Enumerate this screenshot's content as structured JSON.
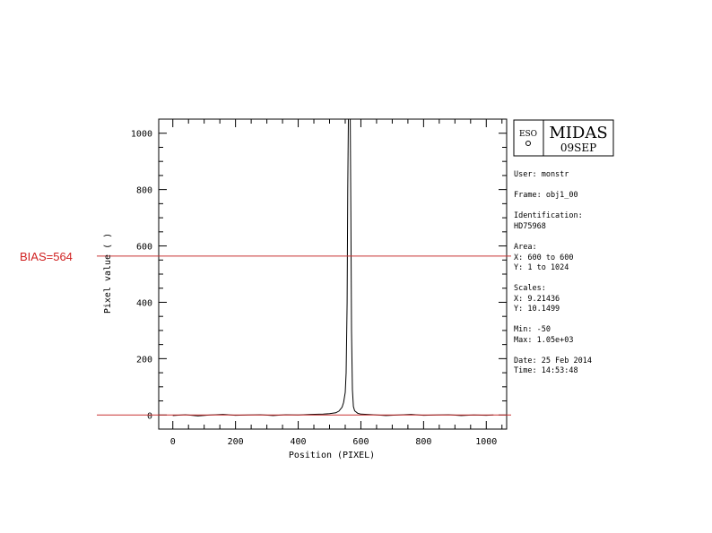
{
  "chart_data": {
    "type": "line",
    "xlabel": "Position (PIXEL)",
    "ylabel": "Pixel value ( )",
    "xlim": [
      -45,
      1065
    ],
    "ylim": [
      -50,
      1050
    ],
    "xticks": [
      0,
      200,
      400,
      600,
      800,
      1000
    ],
    "xtick_labels": [
      "0",
      "200",
      "400",
      "600",
      "800",
      "1000"
    ],
    "yticks": [
      0,
      200,
      400,
      600,
      800,
      1000
    ],
    "ytick_labels": [
      "0",
      "200",
      "400",
      "600",
      "800",
      "1000"
    ],
    "series": [
      {
        "color": "#000000",
        "x": [
          0,
          40,
          80,
          120,
          160,
          200,
          240,
          280,
          320,
          360,
          400,
          440,
          480,
          500,
          520,
          530,
          540,
          545,
          550,
          553,
          556,
          558,
          560,
          562,
          564,
          566,
          568,
          570,
          573,
          576,
          580,
          590,
          600,
          640,
          680,
          720,
          760,
          800,
          840,
          880,
          920,
          960,
          1000,
          1023
        ],
        "y": [
          -2,
          1,
          -3,
          0,
          2,
          -1,
          0,
          1,
          -2,
          1,
          0,
          2,
          3,
          5,
          8,
          14,
          28,
          45,
          80,
          150,
          400,
          800,
          1050,
          1050,
          1050,
          1050,
          700,
          300,
          90,
          30,
          15,
          6,
          3,
          1,
          -2,
          0,
          2,
          -1,
          0,
          1,
          -2,
          0,
          -1,
          0
        ]
      }
    ],
    "reference_lines": [
      {
        "label": "BIAS=564",
        "y": 564,
        "color": "#c83232"
      },
      {
        "label": "",
        "y": 0,
        "color": "#c83232"
      }
    ],
    "grid": false
  },
  "logo": {
    "text": "ESO",
    "title": "MIDAS",
    "date": "09SEP"
  },
  "info": {
    "user": "User: monstr",
    "frame": "Frame: obj1_00",
    "identification_label": "Identification:",
    "identification_value": "HD75968",
    "area_label": "Area:",
    "area_x": "X: 600 to 600",
    "area_y": "Y: 1 to 1024",
    "scales_label": "Scales:",
    "scales_x": "X: 9.21436",
    "scales_y": "Y: 10.1499",
    "min": "Min: -50",
    "max": "Max: 1.05e+03",
    "date": "Date: 25 Feb 2014",
    "time": "Time: 14:53:48"
  }
}
